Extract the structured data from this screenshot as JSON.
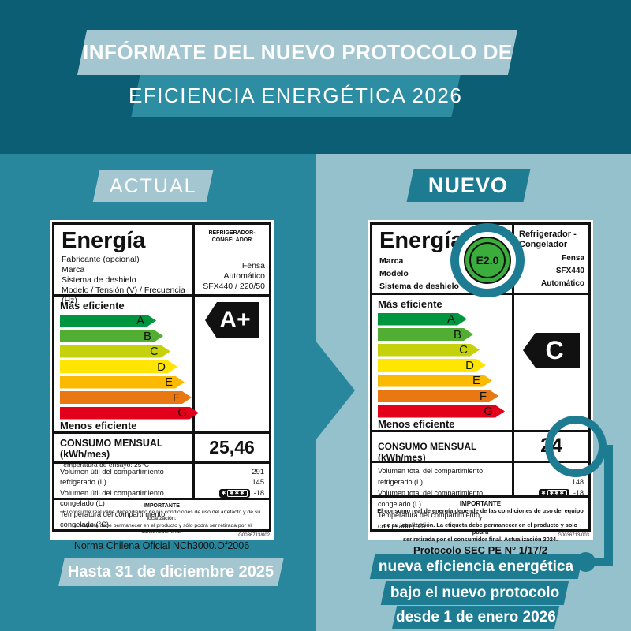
{
  "colors": {
    "top_band": "#0b5e74",
    "left_panel": "#28879c",
    "right_panel": "#94c1cc",
    "light_banner": "#a4c6d1",
    "teal_banner": "#2d8ea3",
    "dark_teal": "#1e7c92",
    "badge_green": "#3aad3c",
    "scale_colors": [
      "#009640",
      "#52ae32",
      "#c5d20b",
      "#ffe500",
      "#fbba00",
      "#e97812",
      "#e2001a"
    ]
  },
  "header": {
    "line1": "INFÓRMATE DEL NUEVO PROTOCOLO DE",
    "line2": "EFICIENCIA ENERGÉTICA 2026"
  },
  "scale": {
    "letters": [
      "A",
      "B",
      "C",
      "D",
      "E",
      "F",
      "G"
    ]
  },
  "left": {
    "tag": "ACTUAL",
    "validity": "Hasta 31 de diciembre 2025",
    "label": {
      "title": "Energía",
      "category": "REFRIGERADOR-CONGELADOR",
      "fields": [
        {
          "label": "Fabricante (opcional)",
          "value": ""
        },
        {
          "label": "Marca",
          "value": "Fensa"
        },
        {
          "label": "Sistema de deshielo",
          "value": "Automático"
        },
        {
          "label": "Modelo / Tensión (V) / Frecuencia (Hz)",
          "value": "SFX440 / 220/50"
        }
      ],
      "more_efficient": "Más eficiente",
      "less_efficient": "Menos eficiente",
      "rating": "A+",
      "consumption_title": "CONSUMO MENSUAL (kWh/mes)",
      "consumption_sub": "Temperatura de ensayo: 25°C",
      "consumption_value": "25,46",
      "rows": [
        {
          "label": "Volumen útil del compartimiento refrigerado (L)",
          "value": "291"
        },
        {
          "label": "Volumen útil del compartimiento congelado (L)",
          "value": "145"
        },
        {
          "label": "Temperatura del compartimiento congelado (°C)",
          "value": "-18"
        }
      ],
      "freezer_star": "✱",
      "freezer_stars": "✱✱✱",
      "important_title": "IMPORTANTE",
      "important_lines": [
        "El consumo real varía dependiendo de las condiciones de uso del artefacto y de su localización.",
        "La etiqueta debe permanecer en el producto y sólo podrá ser retirada por el consumidor final."
      ],
      "norm": "Norma Chilena Oficial NCh3000.Of2006",
      "code": "G0036713/002"
    }
  },
  "right": {
    "tag": "NUEVO",
    "badge": "E2.0",
    "validity_lines": [
      "nueva eficiencia energética",
      "bajo el nuevo protocolo",
      "desde 1 de enero 2026"
    ],
    "label": {
      "title": "Energía",
      "category_line1": "Refrigerador -",
      "category_line2": "Congelador",
      "fields": [
        {
          "label": "Marca",
          "value": "Fensa"
        },
        {
          "label": "Modelo",
          "value": "SFX440"
        },
        {
          "label": "Sistema de deshielo",
          "value": "Automático"
        }
      ],
      "more_efficient": "Más eficiente",
      "less_efficient": "Menos eficiente",
      "rating": "C",
      "consumption_title": "CONSUMO MENSUAL (kWh/mes)",
      "consumption_value": "24",
      "rows": [
        {
          "label": "Volumen total del compartimiento refrigerado (L)",
          "value": ""
        },
        {
          "label": "Volumen total del compartimiento congelado (L)",
          "value": "148"
        },
        {
          "label": "Temperatura del compartimiento congelado (°C)",
          "value": "-18"
        }
      ],
      "freezer_star": "✱",
      "freezer_stars": "✱✱✱",
      "important_title": "IMPORTANTE",
      "important_lines": [
        "El consumo real de energía depende de las condiciones de uso del equipo y",
        "de su localización. La etiqueta debe permanecer en el producto y solo podrá",
        "ser retirada por el consumidor final. Actualización 2024."
      ],
      "protocol": "Protocolo SEC PE N° 1/17/2",
      "code": "G0036713/003"
    }
  }
}
